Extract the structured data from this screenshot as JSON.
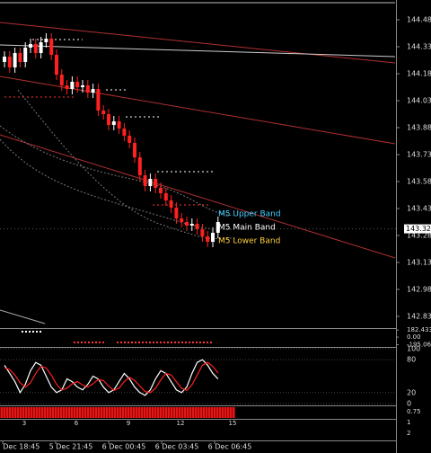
{
  "chart_data": {
    "type": "candlestick",
    "open": [
      144.25,
      144.28,
      144.22,
      144.3,
      144.25,
      144.33,
      144.35,
      144.3,
      144.36,
      144.38,
      144.29,
      144.18,
      144.12,
      144.1,
      144.14,
      144.11,
      144.12,
      144.08,
      144.1,
      143.98,
      143.96,
      143.9,
      143.92,
      143.88,
      143.84,
      143.8,
      143.72,
      143.62,
      143.56,
      143.6,
      143.55,
      143.52,
      143.48,
      143.44,
      143.38,
      143.36,
      143.34,
      143.35,
      143.32,
      143.28,
      143.25,
      143.3
    ],
    "high": [
      144.31,
      144.31,
      144.33,
      144.33,
      144.36,
      144.38,
      144.38,
      144.39,
      144.41,
      144.41,
      144.32,
      144.21,
      144.15,
      144.17,
      144.17,
      144.15,
      144.15,
      144.13,
      144.13,
      144.01,
      143.99,
      143.95,
      143.95,
      143.91,
      143.87,
      143.83,
      143.75,
      143.65,
      143.63,
      143.63,
      143.58,
      143.55,
      143.51,
      143.47,
      143.41,
      143.39,
      143.38,
      143.38,
      143.35,
      143.31,
      143.33,
      143.39
    ],
    "low": [
      144.22,
      144.19,
      144.19,
      144.22,
      144.22,
      144.3,
      144.27,
      144.27,
      144.33,
      144.26,
      144.15,
      144.09,
      144.07,
      144.07,
      144.08,
      144.08,
      144.05,
      144.05,
      143.95,
      143.93,
      143.87,
      143.87,
      143.85,
      143.81,
      143.77,
      143.69,
      143.59,
      143.53,
      143.53,
      143.52,
      143.49,
      143.45,
      143.41,
      143.35,
      143.33,
      143.31,
      143.31,
      143.29,
      143.25,
      143.22,
      143.22,
      143.27
    ],
    "close": [
      144.28,
      144.22,
      144.3,
      144.25,
      144.33,
      144.35,
      144.3,
      144.36,
      144.38,
      144.29,
      144.18,
      144.12,
      144.1,
      144.14,
      144.11,
      144.12,
      144.08,
      144.1,
      143.98,
      143.96,
      143.9,
      143.92,
      143.88,
      143.84,
      143.8,
      143.72,
      143.62,
      143.56,
      143.6,
      143.55,
      143.52,
      143.48,
      143.44,
      143.38,
      143.36,
      143.34,
      143.35,
      143.32,
      143.28,
      143.25,
      143.3,
      143.36
    ],
    "up_color": "#ffffff",
    "down_color": "#ff2020",
    "ylim": [
      142.77,
      144.595
    ],
    "yticks": [
      144.485,
      144.335,
      144.185,
      144.035,
      143.885,
      143.735,
      143.585,
      143.435,
      143.285,
      143.135,
      142.985,
      142.835
    ],
    "current_price": 143.322,
    "annotations": [
      {
        "text": "M5 Upper Band",
        "color": "#40d0ff"
      },
      {
        "text": "M5 Main Band",
        "color": "#ffffff"
      },
      {
        "text": "M5 Lower Band",
        "color": "#ffd040"
      }
    ],
    "indicator": {
      "ylim": [
        -230,
        210
      ],
      "yticks": [
        182.433,
        {
          "value": 0,
          "label": "0.00"
        },
        -195.06
      ]
    },
    "stochastic": {
      "ylim": [
        0,
        100
      ],
      "yticks": [
        0,
        20,
        80,
        100
      ],
      "series": [
        {
          "color": "#ffffff",
          "values": [
            70,
            55,
            40,
            20,
            35,
            60,
            75,
            70,
            50,
            30,
            20,
            25,
            45,
            40,
            30,
            25,
            35,
            50,
            45,
            30,
            20,
            25,
            40,
            55,
            45,
            30,
            20,
            15,
            25,
            45,
            60,
            55,
            40,
            25,
            20,
            30,
            55,
            75,
            80,
            70,
            55,
            45
          ]
        },
        {
          "color": "#ff2020",
          "values": [
            65,
            62,
            52,
            38,
            30,
            38,
            55,
            68,
            65,
            52,
            35,
            25,
            28,
            36,
            40,
            34,
            30,
            36,
            44,
            42,
            32,
            24,
            28,
            40,
            48,
            42,
            32,
            22,
            20,
            28,
            43,
            55,
            52,
            40,
            28,
            24,
            34,
            52,
            70,
            75,
            68,
            56
          ]
        }
      ]
    },
    "bar_numbers": [
      3,
      6,
      9,
      12,
      15
    ],
    "histogram_labels": [
      {
        "value": 0.75,
        "label": "0.75"
      },
      1,
      2
    ],
    "time_labels": [
      "5 Dec 18:45",
      "5 Dec 21:45",
      "6 Dec 00:45",
      "6 Dec 03:45",
      "6 Dec 06:45"
    ]
  }
}
